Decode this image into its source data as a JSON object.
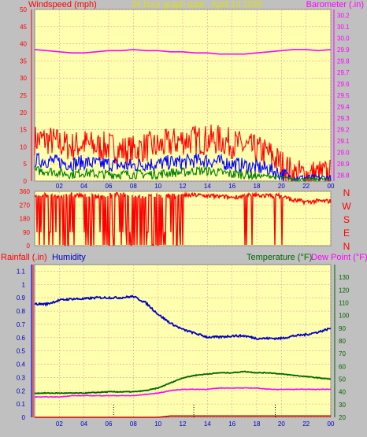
{
  "header": {
    "title": "24 hour graph date : April 13 2025",
    "left_label": "Windspeed (mph)",
    "right_label": "Barometer (.in)"
  },
  "direction_labels": [
    "N",
    "W",
    "S",
    "E",
    "N"
  ],
  "bottom_header": {
    "rainfall": "Rainfall (.in)",
    "humidity": "Humidity",
    "temperature": "Temperature (°F)",
    "dewpoint": "Dew Point (°F)"
  },
  "colors": {
    "background": "#c0c0c0",
    "plot": "#ffffb0",
    "wind_gust": "#ff0000",
    "wind_avg": "#0000ff",
    "wind_low": "#008000",
    "barometer": "#ff00ff",
    "direction": "#ff0000",
    "humidity": "#0000c0",
    "temperature": "#006400",
    "dewpoint": "#ff00ff",
    "rain": "#d00000",
    "title": "#e0e000"
  },
  "chart_data": [
    {
      "type": "line",
      "title": "24 hour graph date : April 13 2025",
      "x": [
        0,
        1,
        2,
        3,
        4,
        5,
        6,
        7,
        8,
        9,
        10,
        11,
        12,
        13,
        14,
        15,
        16,
        17,
        18,
        19,
        20,
        21,
        22,
        23,
        24
      ],
      "xticks": [
        "02",
        "04",
        "06",
        "08",
        "10",
        "12",
        "14",
        "16",
        "18",
        "20",
        "22",
        "00"
      ],
      "ylabel": "Windspeed (mph)",
      "ylim": [
        0,
        50
      ],
      "y2label": "Barometer (.in)",
      "y2lim": [
        28.75,
        30.25
      ],
      "series": [
        {
          "values": [
            12,
            12,
            11,
            10,
            11,
            10,
            10,
            9,
            9,
            10,
            10,
            11,
            12,
            12,
            12,
            12,
            11,
            10,
            9,
            8,
            5,
            2,
            2,
            2,
            2
          ]
        },
        {
          "values": [
            6,
            6,
            5.5,
            5,
            5.5,
            5,
            5,
            4.5,
            4.5,
            5,
            5,
            5.5,
            5.5,
            6,
            6,
            5.5,
            5,
            4.5,
            4,
            3.5,
            2,
            1,
            1,
            1,
            1
          ]
        },
        {
          "values": [
            3,
            3,
            2.5,
            2,
            2.5,
            2,
            2,
            2,
            2,
            2,
            2,
            2.5,
            2.5,
            3,
            3,
            2.5,
            2,
            2,
            1.5,
            1.5,
            1,
            0.5,
            0.5,
            0.5,
            0.5
          ]
        },
        {
          "values": [
            29.9,
            29.89,
            29.88,
            29.87,
            29.87,
            29.88,
            29.89,
            29.89,
            29.9,
            29.89,
            29.89,
            29.88,
            29.88,
            29.87,
            29.87,
            29.86,
            29.86,
            29.86,
            29.87,
            29.88,
            29.89,
            29.9,
            29.9,
            29.89,
            29.9
          ]
        }
      ],
      "yticks": [
        0,
        5,
        10,
        15,
        20,
        25,
        30,
        35,
        40,
        45,
        50
      ],
      "y2ticks": [
        28.8,
        28.9,
        29.0,
        29.1,
        29.2,
        29.3,
        29.4,
        29.5,
        29.6,
        29.7,
        29.8,
        29.9,
        30.0,
        30.1,
        30.2
      ]
    },
    {
      "type": "scatter",
      "x": [
        0,
        1,
        2,
        3,
        4,
        5,
        6,
        7,
        8,
        9,
        10,
        11,
        12,
        13,
        14,
        15,
        16,
        17,
        18,
        19,
        20,
        21,
        22,
        23,
        24
      ],
      "ylim": [
        0,
        360
      ],
      "yticks": [
        0,
        90,
        180,
        270,
        360
      ],
      "series": [
        {
          "values": [
            330,
            335,
            320,
            340,
            330,
            325,
            335,
            340,
            330,
            320,
            335,
            330,
            330,
            335,
            330,
            325,
            320,
            330,
            335,
            330,
            330,
            300,
            290,
            295,
            295
          ]
        }
      ]
    },
    {
      "type": "line",
      "x": [
        0,
        1,
        2,
        3,
        4,
        5,
        6,
        7,
        8,
        9,
        10,
        11,
        12,
        13,
        14,
        15,
        16,
        17,
        18,
        19,
        20,
        21,
        22,
        23,
        24
      ],
      "ylim": [
        0,
        1.15
      ],
      "yticks": [
        0,
        0.1,
        0.2,
        0.3,
        0.4,
        0.5,
        0.6,
        0.7,
        0.8,
        0.9,
        1,
        1.1
      ],
      "y2lim": [
        20,
        140
      ],
      "y2ticks": [
        20,
        30,
        40,
        50,
        60,
        70,
        80,
        90,
        100,
        110,
        120,
        130
      ],
      "series": [
        {
          "name": "Humidity",
          "values": [
            94,
            94,
            97,
            98,
            98,
            99,
            99,
            99,
            100,
            95,
            86,
            79,
            74,
            71,
            68,
            68,
            69,
            69,
            67,
            67,
            67,
            69,
            70,
            72,
            75
          ]
        },
        {
          "name": "Temperature (°F)",
          "values": [
            39,
            39,
            39,
            39,
            39,
            39.5,
            40,
            40,
            40,
            41,
            43,
            47,
            51,
            53,
            54,
            55,
            55,
            56,
            55,
            55,
            54,
            53,
            52,
            51,
            50
          ]
        },
        {
          "name": "Dew Point (°F)",
          "values": [
            36,
            36,
            36,
            37,
            37,
            37,
            37,
            37,
            37,
            38,
            39,
            41,
            42,
            42,
            42,
            43,
            43,
            43,
            43,
            42,
            42,
            42,
            42,
            42,
            42
          ]
        },
        {
          "name": "Rainfall (.in)",
          "values": [
            0,
            0,
            0,
            0,
            0,
            0,
            0,
            0,
            0,
            0,
            0,
            0.01,
            0.01,
            0.01,
            0.01,
            0.01,
            0.01,
            0.01,
            0.01,
            0.01,
            0.01,
            0.01,
            0.01,
            0.01,
            0.01
          ]
        }
      ]
    }
  ]
}
